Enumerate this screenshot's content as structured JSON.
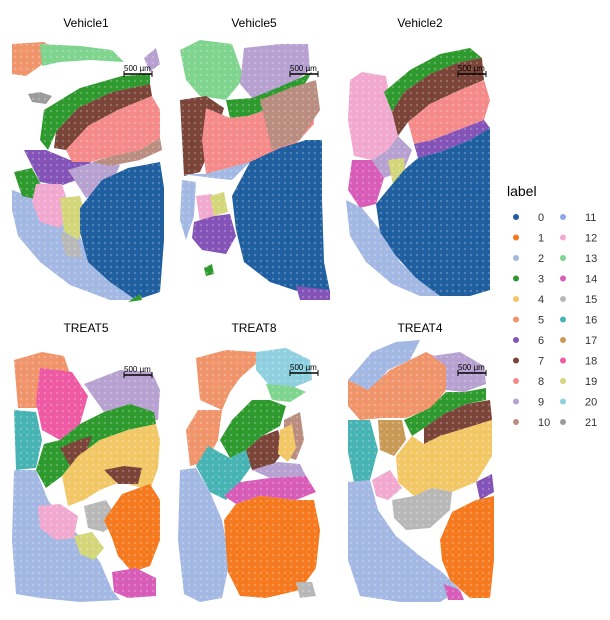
{
  "panels": [
    {
      "title": "Vehicle1",
      "scalebar": "500 µm"
    },
    {
      "title": "Vehicle5",
      "scalebar": "500 µm"
    },
    {
      "title": "Vehicle2",
      "scalebar": "500 µm"
    },
    {
      "title": "TREAT5",
      "scalebar": "500 µm"
    },
    {
      "title": "TREAT8",
      "scalebar": "500 µm"
    },
    {
      "title": "TREAT4",
      "scalebar": "500 µm"
    }
  ],
  "legend": {
    "title": "label",
    "position": "right",
    "entries": [
      {
        "label": "0",
        "color": "#1f5fa0"
      },
      {
        "label": "1",
        "color": "#f57a1f"
      },
      {
        "label": "2",
        "color": "#a3b8e3"
      },
      {
        "label": "3",
        "color": "#2e9a2e"
      },
      {
        "label": "4",
        "color": "#f2c766"
      },
      {
        "label": "5",
        "color": "#f0956b"
      },
      {
        "label": "6",
        "color": "#8453b8"
      },
      {
        "label": "7",
        "color": "#7a4438"
      },
      {
        "label": "8",
        "color": "#f48a8a"
      },
      {
        "label": "9",
        "color": "#b6a1d1"
      },
      {
        "label": "10",
        "color": "#b98d80"
      },
      {
        "label": "11",
        "color": "#8ea7e8"
      },
      {
        "label": "12",
        "color": "#f1a9cf"
      },
      {
        "label": "13",
        "color": "#7fd48e"
      },
      {
        "label": "14",
        "color": "#d85db8"
      },
      {
        "label": "15",
        "color": "#b8b8b8"
      },
      {
        "label": "16",
        "color": "#47b3b3"
      },
      {
        "label": "17",
        "color": "#c99a56"
      },
      {
        "label": "18",
        "color": "#ee5aa4"
      },
      {
        "label": "19",
        "color": "#d3d679"
      },
      {
        "label": "20",
        "color": "#8fd0e0"
      },
      {
        "label": "21",
        "color": "#9b9b9b"
      }
    ]
  }
}
